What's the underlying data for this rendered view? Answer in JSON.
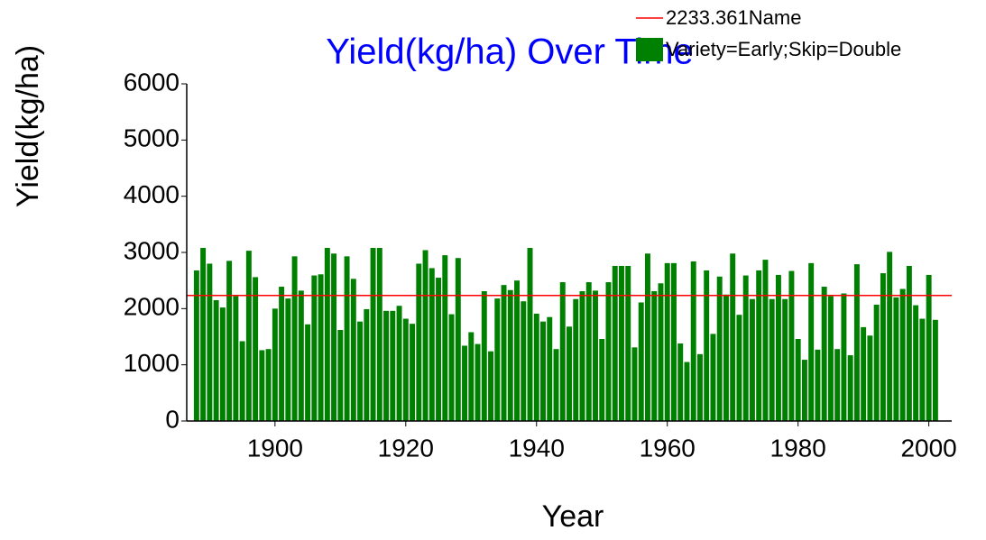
{
  "chart_data": {
    "type": "bar",
    "title": "Yield(kg/ha) Over Time",
    "x_label": "Year",
    "y_label": "Yield(kg/ha)",
    "x": [
      1888,
      1889,
      1890,
      1891,
      1892,
      1893,
      1894,
      1895,
      1896,
      1897,
      1898,
      1899,
      1900,
      1901,
      1902,
      1903,
      1904,
      1905,
      1906,
      1907,
      1908,
      1909,
      1910,
      1911,
      1912,
      1913,
      1914,
      1915,
      1916,
      1917,
      1918,
      1919,
      1920,
      1921,
      1922,
      1923,
      1924,
      1925,
      1926,
      1927,
      1928,
      1929,
      1930,
      1931,
      1932,
      1933,
      1934,
      1935,
      1936,
      1937,
      1938,
      1939,
      1940,
      1941,
      1942,
      1943,
      1944,
      1945,
      1946,
      1947,
      1948,
      1949,
      1950,
      1951,
      1952,
      1953,
      1954,
      1955,
      1956,
      1957,
      1958,
      1959,
      1960,
      1961,
      1962,
      1963,
      1964,
      1965,
      1966,
      1967,
      1968,
      1969,
      1970,
      1971,
      1972,
      1973,
      1974,
      1975,
      1976,
      1977,
      1978,
      1979,
      1980,
      1981,
      1982,
      1983,
      1984,
      1985,
      1986,
      1987,
      1988,
      1989,
      1990,
      1991,
      1992,
      1993,
      1994,
      1995,
      1996,
      1997,
      1998,
      1999,
      2000,
      2001
    ],
    "series": [
      {
        "name": "Variety=Early;Skip=Double",
        "color": "#008000",
        "values": [
          2680,
          3080,
          2800,
          2150,
          2020,
          2850,
          2220,
          1420,
          3030,
          2560,
          1260,
          1280,
          2000,
          2390,
          2180,
          2930,
          2320,
          1720,
          2590,
          2610,
          3080,
          2980,
          1620,
          2930,
          2530,
          1770,
          1990,
          3080,
          3080,
          1960,
          1960,
          2050,
          1820,
          1730,
          2800,
          3040,
          2720,
          2550,
          2950,
          1900,
          2900,
          1340,
          1580,
          1370,
          2310,
          1240,
          2180,
          2420,
          2330,
          2500,
          2130,
          3080,
          1910,
          1770,
          1850,
          1280,
          2470,
          1680,
          2170,
          2310,
          2470,
          2320,
          1460,
          2470,
          2760,
          2760,
          2760,
          1310,
          2110,
          2980,
          2310,
          2450,
          2810,
          2810,
          1380,
          1050,
          2840,
          1190,
          2680,
          1550,
          2570,
          2250,
          2980,
          1890,
          2590,
          2170,
          2680,
          2870,
          2170,
          2600,
          2170,
          2670,
          1460,
          1090,
          2810,
          1270,
          2390,
          2220,
          1280,
          2270,
          1170,
          2790,
          1670,
          1520,
          2070,
          2630,
          3010,
          2200,
          2350,
          2760,
          2060,
          1820,
          2600,
          1800
        ]
      }
    ],
    "reference_line": {
      "name": "2233.361Name",
      "value": 2233.361,
      "color": "#ff0000"
    },
    "xlim": [
      1886.5,
      2003.5
    ],
    "xticks": [
      1900,
      1920,
      1940,
      1960,
      1980,
      2000
    ],
    "ylim": [
      0,
      6000
    ],
    "yticks": [
      0,
      1000,
      2000,
      3000,
      4000,
      5000,
      6000
    ]
  }
}
